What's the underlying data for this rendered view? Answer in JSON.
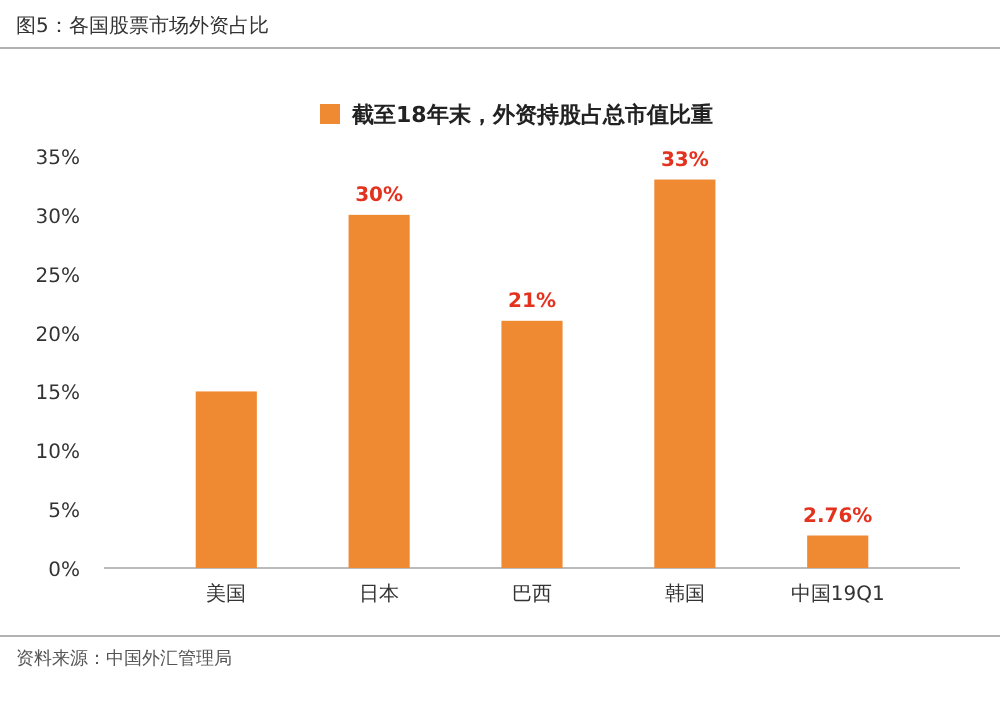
{
  "chart_data": {
    "type": "bar",
    "title": "图5：各国股票市场外资占比",
    "categories": [
      "美国",
      "日本",
      "巴西",
      "韩国",
      "中国19Q1"
    ],
    "series": [
      {
        "name": "截至18年末，外资持股占总市值比重",
        "color": "#f08a32",
        "values": [
          15,
          30,
          21,
          33,
          2.76
        ],
        "value_labels": [
          null,
          "30%",
          "21%",
          "33%",
          "2.76%"
        ]
      }
    ],
    "ylim": [
      0,
      35
    ],
    "yticks": [
      {
        "value": 0,
        "label": "0%"
      },
      {
        "value": 5,
        "label": "5%"
      },
      {
        "value": 10,
        "label": "10%"
      },
      {
        "value": 15,
        "label": "15%"
      },
      {
        "value": 20,
        "label": "20%"
      },
      {
        "value": 25,
        "label": "25%"
      },
      {
        "value": 30,
        "label": "30%"
      },
      {
        "value": 35,
        "label": "35%"
      }
    ],
    "legend": "top",
    "annotations": [
      "资料来源：中国外汇管理局"
    ]
  }
}
